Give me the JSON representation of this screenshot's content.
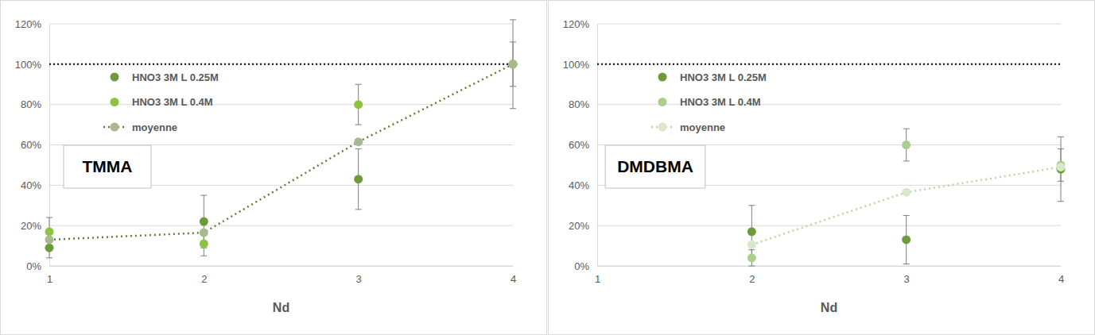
{
  "chart_data": [
    {
      "type": "scatter",
      "title": "TMMA",
      "x_label": "Nd",
      "x": [
        1,
        2,
        3,
        4
      ],
      "xlim": [
        1,
        4
      ],
      "xticks": [
        1,
        2,
        3,
        4
      ],
      "ylim": [
        0,
        120
      ],
      "yticks": [
        {
          "value": 0,
          "label": "0%"
        },
        {
          "value": 20,
          "label": "20%"
        },
        {
          "value": 40,
          "label": "40%"
        },
        {
          "value": 60,
          "label": "60%"
        },
        {
          "value": 80,
          "label": "80%"
        },
        {
          "value": 100,
          "label": "100%"
        },
        {
          "value": 120,
          "label": "120%"
        }
      ],
      "grid": true,
      "legend": "upper left",
      "hline": 100,
      "series": [
        {
          "name": "HNO3 3M L 0.25M",
          "type": "scatter",
          "marker": "circle",
          "color": "#6f9a3c",
          "values": [
            9,
            22,
            43,
            100
          ],
          "errors": [
            5,
            13,
            15,
            22
          ]
        },
        {
          "name": "HNO3 3M L 0.4M",
          "type": "scatter",
          "marker": "circle",
          "color": "#8cc43f",
          "values": [
            17,
            11,
            80,
            100
          ],
          "errors": [
            7,
            6,
            10,
            11
          ]
        },
        {
          "name": "moyenne",
          "type": "line",
          "marker": "circle",
          "line_style": "dotted",
          "color": "#5f7f35",
          "values": [
            13,
            16.5,
            61.5,
            100
          ]
        }
      ]
    },
    {
      "type": "scatter",
      "title": "DMDBMA",
      "x_label": "Nd",
      "x": [
        1,
        2,
        3,
        4
      ],
      "xlim": [
        1,
        4
      ],
      "xticks": [
        1,
        2,
        3,
        4
      ],
      "ylim": [
        0,
        120
      ],
      "yticks": [
        {
          "value": 0,
          "label": "0%"
        },
        {
          "value": 20,
          "label": "20%"
        },
        {
          "value": 40,
          "label": "40%"
        },
        {
          "value": 60,
          "label": "60%"
        },
        {
          "value": 80,
          "label": "80%"
        },
        {
          "value": 100,
          "label": "100%"
        },
        {
          "value": 120,
          "label": "120%"
        }
      ],
      "grid": true,
      "legend": "upper left",
      "hline": 100,
      "series": [
        {
          "name": "HNO3 3M L 0.25M",
          "type": "scatter",
          "marker": "circle",
          "color": "#6f9a3c",
          "values": [
            null,
            17,
            13,
            48
          ],
          "errors": [
            null,
            13,
            12,
            16
          ]
        },
        {
          "name": "HNO3 3M L 0.4M",
          "type": "scatter",
          "marker": "circle",
          "color": "#a9cf8a",
          "values": [
            null,
            4,
            60,
            50
          ],
          "errors": [
            null,
            4,
            8,
            8
          ]
        },
        {
          "name": "moyenne",
          "type": "line",
          "marker": "circle",
          "line_style": "dotted",
          "color": "#b9d69e",
          "values": [
            null,
            10.5,
            36.5,
            49
          ]
        }
      ]
    }
  ]
}
